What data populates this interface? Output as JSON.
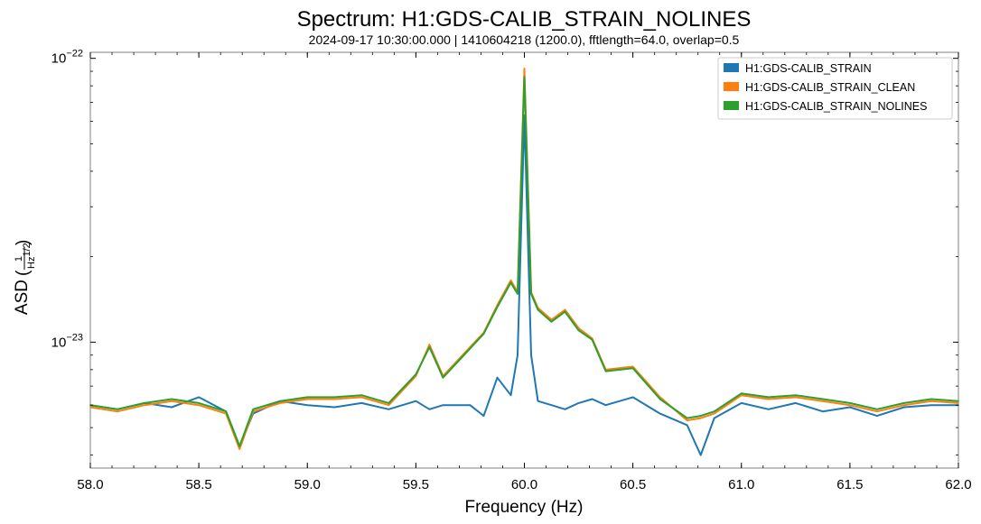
{
  "chart_data": {
    "type": "line",
    "title": "Spectrum: H1:GDS-CALIB_STRAIN_NOLINES",
    "subtitle": "2024-09-17 10:30:00.000 | 1410604218 (1200.0), fftlength=64.0, overlap=0.5",
    "xlabel": "Frequency (Hz)",
    "ylabel_prefix": "ASD",
    "ylabel_num": "1",
    "ylabel_den_base": "Hz",
    "ylabel_den_exp": "1/2",
    "xlim": [
      58.0,
      62.0
    ],
    "ylim": [
      3.6e-24,
      1.05e-22
    ],
    "yscale": "log",
    "x_ticks": [
      "58.0",
      "58.5",
      "59.0",
      "59.5",
      "60.0",
      "60.5",
      "61.0",
      "61.5",
      "62.0"
    ],
    "y_ticks": [
      {
        "base": "10",
        "exp": "−22",
        "value": 1e-22
      },
      {
        "base": "10",
        "exp": "−23",
        "value": 1e-23
      }
    ],
    "legend_position": "top-right",
    "x": [
      58.0,
      58.125,
      58.25,
      58.375,
      58.5,
      58.625,
      58.6875,
      58.75,
      58.875,
      59.0,
      59.125,
      59.25,
      59.375,
      59.5,
      59.5625,
      59.625,
      59.75,
      59.8125,
      59.875,
      59.9375,
      59.96875,
      60.0,
      60.03125,
      60.0625,
      60.125,
      60.1875,
      60.25,
      60.3125,
      60.375,
      60.5,
      60.625,
      60.75,
      60.8125,
      60.875,
      61.0,
      61.125,
      61.25,
      61.375,
      61.5,
      61.625,
      61.75,
      61.875,
      62.0
    ],
    "series": [
      {
        "name": "H1:GDS-CALIB_STRAIN",
        "color": "#1f77b4",
        "values": [
          6e-24,
          5.8e-24,
          6.1e-24,
          5.9e-24,
          6.4e-24,
          5.7e-24,
          4.3e-24,
          5.6e-24,
          6.2e-24,
          6e-24,
          5.9e-24,
          6.1e-24,
          5.8e-24,
          6.2e-24,
          5.8e-24,
          6e-24,
          6e-24,
          5.5e-24,
          7.5e-24,
          6.5e-24,
          9e-24,
          6.3e-23,
          9e-24,
          6.2e-24,
          6e-24,
          5.8e-24,
          6.1e-24,
          6.3e-24,
          6e-24,
          6.4e-24,
          5.6e-24,
          5.1e-24,
          4e-24,
          5.4e-24,
          6.1e-24,
          5.8e-24,
          6.1e-24,
          5.7e-24,
          5.9e-24,
          5.5e-24,
          5.9e-24,
          6e-24,
          6e-24
        ]
      },
      {
        "name": "H1:GDS-CALIB_STRAIN_CLEAN",
        "color": "#ff7f0e",
        "values": [
          5.9e-24,
          5.7e-24,
          6e-24,
          6.2e-24,
          6e-24,
          5.6e-24,
          4.2e-24,
          5.7e-24,
          6.1e-24,
          6.3e-24,
          6.3e-24,
          6.4e-24,
          6e-24,
          7.6e-24,
          9.8e-24,
          7.6e-24,
          9.6e-24,
          1.08e-23,
          1.35e-23,
          1.65e-23,
          1.5e-23,
          9.2e-23,
          1.5e-23,
          1.32e-23,
          1.2e-23,
          1.3e-23,
          1.12e-23,
          1.03e-23,
          8e-24,
          8.2e-24,
          6.4e-24,
          5.3e-24,
          5.4e-24,
          5.6e-24,
          6.5e-24,
          6.3e-24,
          6.4e-24,
          6.2e-24,
          6e-24,
          5.7e-24,
          6e-24,
          6.2e-24,
          6.1e-24
        ]
      },
      {
        "name": "H1:GDS-CALIB_STRAIN_NOLINES",
        "color": "#2ca02c",
        "values": [
          6e-24,
          5.8e-24,
          6.1e-24,
          6.3e-24,
          6.1e-24,
          5.7e-24,
          4.3e-24,
          5.8e-24,
          6.2e-24,
          6.4e-24,
          6.4e-24,
          6.5e-24,
          6.1e-24,
          7.7e-24,
          9.6e-24,
          7.5e-24,
          9.5e-24,
          1.07e-23,
          1.33e-23,
          1.62e-23,
          1.48e-23,
          8.6e-23,
          1.48e-23,
          1.3e-23,
          1.18e-23,
          1.28e-23,
          1.1e-23,
          1.02e-23,
          7.9e-24,
          8.1e-24,
          6.3e-24,
          5.4e-24,
          5.5e-24,
          5.7e-24,
          6.6e-24,
          6.4e-24,
          6.5e-24,
          6.3e-24,
          6.1e-24,
          5.8e-24,
          6.1e-24,
          6.3e-24,
          6.2e-24
        ]
      }
    ]
  }
}
